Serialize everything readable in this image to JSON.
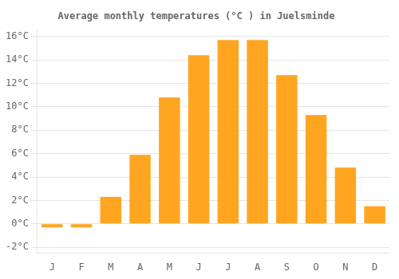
{
  "chart_data": {
    "type": "bar",
    "title": "Average monthly temperatures (°C ) in Juelsminde",
    "categories": [
      "J",
      "F",
      "M",
      "A",
      "M",
      "J",
      "J",
      "A",
      "S",
      "O",
      "N",
      "D"
    ],
    "values": [
      -0.3,
      -0.3,
      2.3,
      5.9,
      10.8,
      14.4,
      15.7,
      15.7,
      12.7,
      9.3,
      4.8,
      1.5
    ],
    "color": "#FFA520",
    "ylim": [
      -2.5,
      16.5
    ],
    "yticks": [
      {
        "value": -2,
        "label": "-2°C"
      },
      {
        "value": 0,
        "label": "0°C"
      },
      {
        "value": 2,
        "label": "2°C"
      },
      {
        "value": 4,
        "label": "4°C"
      },
      {
        "value": 6,
        "label": "6°C"
      },
      {
        "value": 8,
        "label": "8°C"
      },
      {
        "value": 10,
        "label": "10°C"
      },
      {
        "value": 12,
        "label": "12°C"
      },
      {
        "value": 14,
        "label": "14°C"
      },
      {
        "value": 16,
        "label": "16°C"
      }
    ],
    "grid": true
  }
}
